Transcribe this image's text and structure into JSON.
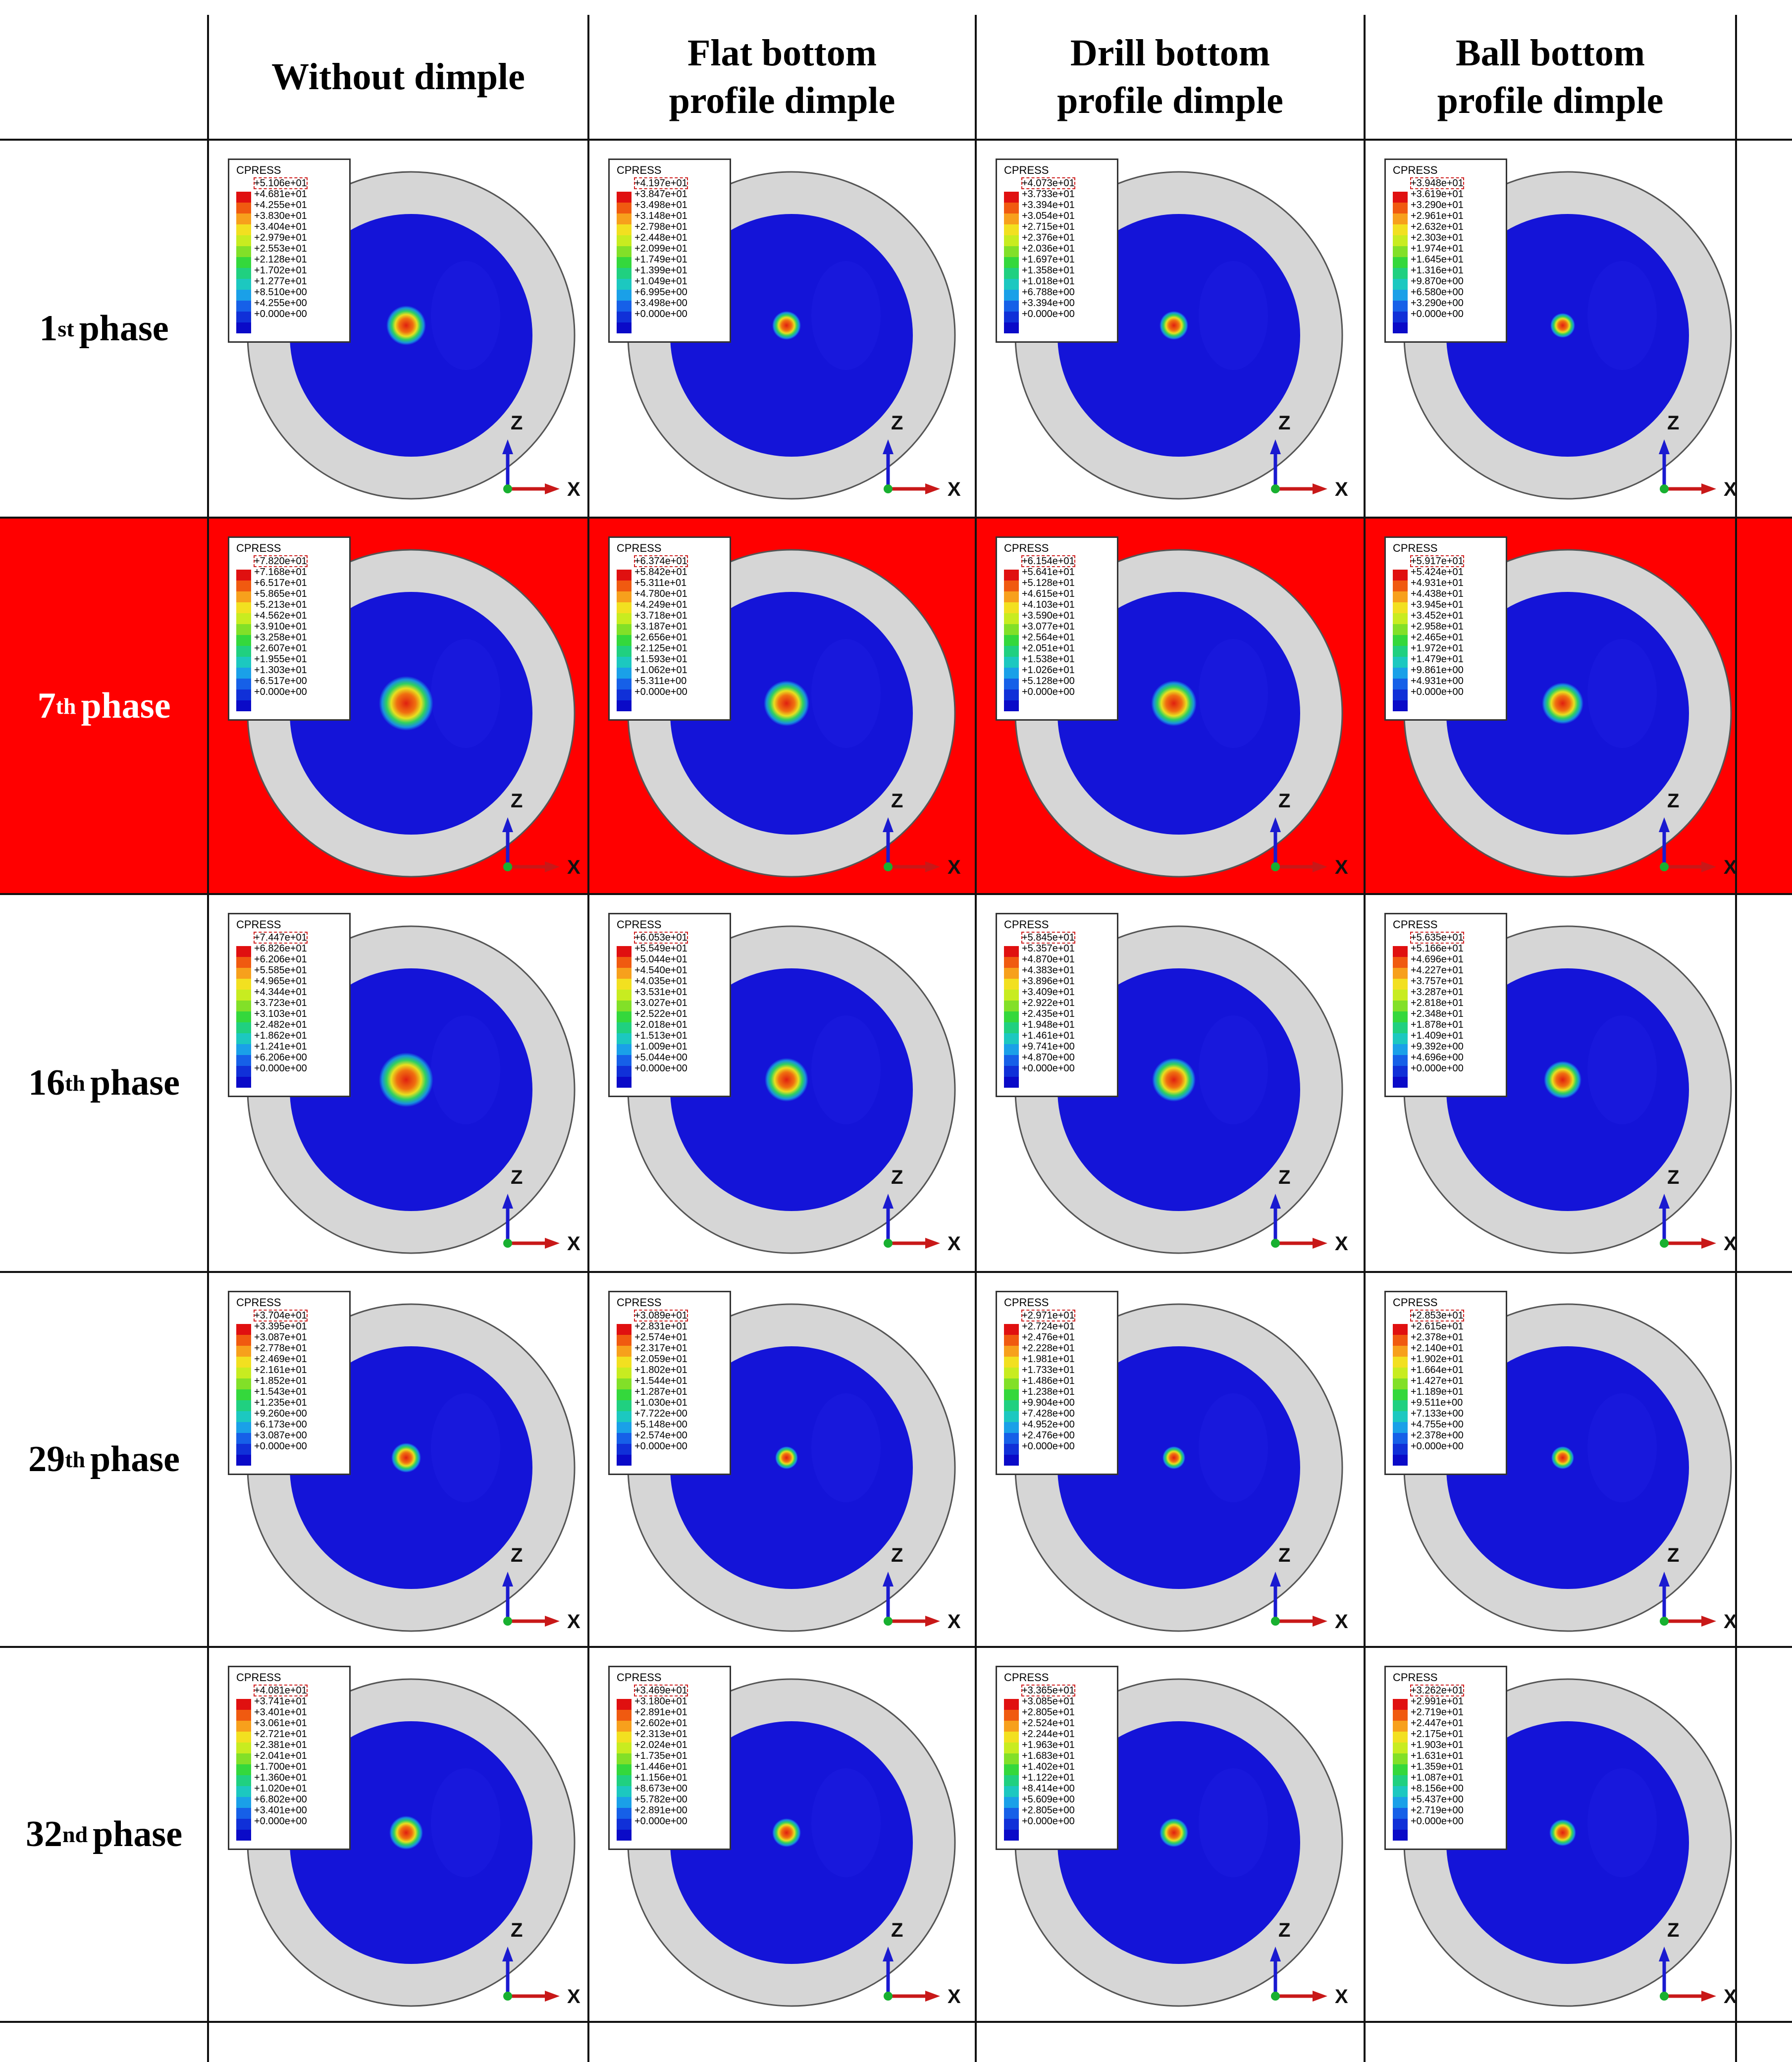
{
  "table": {
    "columns": [
      {
        "line1": "Without dimple",
        "line2": ""
      },
      {
        "line1": "Flat bottom",
        "line2": "profile dimple"
      },
      {
        "line1": "Drill bottom",
        "line2": "profile dimple"
      },
      {
        "line1": "Ball bottom",
        "line2": "profile dimple"
      }
    ],
    "rows": [
      {
        "num": "1",
        "sup": "st",
        "label": "phase",
        "highlight": false
      },
      {
        "num": "7",
        "sup": "th",
        "label": "phase",
        "highlight": true
      },
      {
        "num": "16",
        "sup": "th",
        "label": "phase",
        "highlight": false
      },
      {
        "num": "29",
        "sup": "th",
        "label": "phase",
        "highlight": false
      },
      {
        "num": "32",
        "sup": "nd",
        "label": "phase",
        "highlight": false
      }
    ],
    "legend_title": "CPRESS",
    "axis_labels": {
      "vertical": "Z",
      "horizontal": "X"
    },
    "colors": {
      "highlight_band": "#ff0000",
      "disk_blue": "#1414d8",
      "rim_gray": "#d6d6d6",
      "hotspot": "#e02010"
    },
    "colorbar": [
      "#e01010",
      "#f05a10",
      "#f7a01c",
      "#f2e020",
      "#c8ec20",
      "#82e028",
      "#34d83c",
      "#20d080",
      "#1cc8c0",
      "#1aa0e8",
      "#1660e8",
      "#1030d8",
      "#0a0ac8"
    ],
    "hotspot_scale": [
      [
        0.21,
        0.15,
        0.15,
        0.13
      ],
      [
        0.29,
        0.24,
        0.24,
        0.22
      ],
      [
        0.29,
        0.23,
        0.23,
        0.2
      ],
      [
        0.16,
        0.12,
        0.12,
        0.12
      ],
      [
        0.18,
        0.15,
        0.15,
        0.14
      ]
    ],
    "legends": [
      [
        [
          "+5.106e+01",
          "+4.681e+01",
          "+4.255e+01",
          "+3.830e+01",
          "+3.404e+01",
          "+2.979e+01",
          "+2.553e+01",
          "+2.128e+01",
          "+1.702e+01",
          "+1.277e+01",
          "+8.510e+00",
          "+4.255e+00",
          "+0.000e+00"
        ],
        [
          "+4.197e+01",
          "+3.847e+01",
          "+3.498e+01",
          "+3.148e+01",
          "+2.798e+01",
          "+2.448e+01",
          "+2.099e+01",
          "+1.749e+01",
          "+1.399e+01",
          "+1.049e+01",
          "+6.995e+00",
          "+3.498e+00",
          "+0.000e+00"
        ],
        [
          "+4.073e+01",
          "+3.733e+01",
          "+3.394e+01",
          "+3.054e+01",
          "+2.715e+01",
          "+2.376e+01",
          "+2.036e+01",
          "+1.697e+01",
          "+1.358e+01",
          "+1.018e+01",
          "+6.788e+00",
          "+3.394e+00",
          "+0.000e+00"
        ],
        [
          "+3.948e+01",
          "+3.619e+01",
          "+3.290e+01",
          "+2.961e+01",
          "+2.632e+01",
          "+2.303e+01",
          "+1.974e+01",
          "+1.645e+01",
          "+1.316e+01",
          "+9.870e+00",
          "+6.580e+00",
          "+3.290e+00",
          "+0.000e+00"
        ]
      ],
      [
        [
          "+7.820e+01",
          "+7.168e+01",
          "+6.517e+01",
          "+5.865e+01",
          "+5.213e+01",
          "+4.562e+01",
          "+3.910e+01",
          "+3.258e+01",
          "+2.607e+01",
          "+1.955e+01",
          "+1.303e+01",
          "+6.517e+00",
          "+0.000e+00"
        ],
        [
          "+6.374e+01",
          "+5.842e+01",
          "+5.311e+01",
          "+4.780e+01",
          "+4.249e+01",
          "+3.718e+01",
          "+3.187e+01",
          "+2.656e+01",
          "+2.125e+01",
          "+1.593e+01",
          "+1.062e+01",
          "+5.311e+00",
          "+0.000e+00"
        ],
        [
          "+6.154e+01",
          "+5.641e+01",
          "+5.128e+01",
          "+4.615e+01",
          "+4.103e+01",
          "+3.590e+01",
          "+3.077e+01",
          "+2.564e+01",
          "+2.051e+01",
          "+1.538e+01",
          "+1.026e+01",
          "+5.128e+00",
          "+0.000e+00"
        ],
        [
          "+5.917e+01",
          "+5.424e+01",
          "+4.931e+01",
          "+4.438e+01",
          "+3.945e+01",
          "+3.452e+01",
          "+2.958e+01",
          "+2.465e+01",
          "+1.972e+01",
          "+1.479e+01",
          "+9.861e+00",
          "+4.931e+00",
          "+0.000e+00"
        ]
      ],
      [
        [
          "+7.447e+01",
          "+6.826e+01",
          "+6.206e+01",
          "+5.585e+01",
          "+4.965e+01",
          "+4.344e+01",
          "+3.723e+01",
          "+3.103e+01",
          "+2.482e+01",
          "+1.862e+01",
          "+1.241e+01",
          "+6.206e+00",
          "+0.000e+00"
        ],
        [
          "+6.053e+01",
          "+5.549e+01",
          "+5.044e+01",
          "+4.540e+01",
          "+4.035e+01",
          "+3.531e+01",
          "+3.027e+01",
          "+2.522e+01",
          "+2.018e+01",
          "+1.513e+01",
          "+1.009e+01",
          "+5.044e+00",
          "+0.000e+00"
        ],
        [
          "+5.845e+01",
          "+5.357e+01",
          "+4.870e+01",
          "+4.383e+01",
          "+3.896e+01",
          "+3.409e+01",
          "+2.922e+01",
          "+2.435e+01",
          "+1.948e+01",
          "+1.461e+01",
          "+9.741e+00",
          "+4.870e+00",
          "+0.000e+00"
        ],
        [
          "+5.635e+01",
          "+5.166e+01",
          "+4.696e+01",
          "+4.227e+01",
          "+3.757e+01",
          "+3.287e+01",
          "+2.818e+01",
          "+2.348e+01",
          "+1.878e+01",
          "+1.409e+01",
          "+9.392e+00",
          "+4.696e+00",
          "+0.000e+00"
        ]
      ],
      [
        [
          "+3.704e+01",
          "+3.395e+01",
          "+3.087e+01",
          "+2.778e+01",
          "+2.469e+01",
          "+2.161e+01",
          "+1.852e+01",
          "+1.543e+01",
          "+1.235e+01",
          "+9.260e+00",
          "+6.173e+00",
          "+3.087e+00",
          "+0.000e+00"
        ],
        [
          "+3.089e+01",
          "+2.831e+01",
          "+2.574e+01",
          "+2.317e+01",
          "+2.059e+01",
          "+1.802e+01",
          "+1.544e+01",
          "+1.287e+01",
          "+1.030e+01",
          "+7.722e+00",
          "+5.148e+00",
          "+2.574e+00",
          "+0.000e+00"
        ],
        [
          "+2.971e+01",
          "+2.724e+01",
          "+2.476e+01",
          "+2.228e+01",
          "+1.981e+01",
          "+1.733e+01",
          "+1.486e+01",
          "+1.238e+01",
          "+9.904e+00",
          "+7.428e+00",
          "+4.952e+00",
          "+2.476e+00",
          "+0.000e+00"
        ],
        [
          "+2.853e+01",
          "+2.615e+01",
          "+2.378e+01",
          "+2.140e+01",
          "+1.902e+01",
          "+1.664e+01",
          "+1.427e+01",
          "+1.189e+01",
          "+9.511e+00",
          "+7.133e+00",
          "+4.755e+00",
          "+2.378e+00",
          "+0.000e+00"
        ]
      ],
      [
        [
          "+4.081e+01",
          "+3.741e+01",
          "+3.401e+01",
          "+3.061e+01",
          "+2.721e+01",
          "+2.381e+01",
          "+2.041e+01",
          "+1.700e+01",
          "+1.360e+01",
          "+1.020e+01",
          "+6.802e+00",
          "+3.401e+00",
          "+0.000e+00"
        ],
        [
          "+3.469e+01",
          "+3.180e+01",
          "+2.891e+01",
          "+2.602e+01",
          "+2.313e+01",
          "+2.024e+01",
          "+1.735e+01",
          "+1.446e+01",
          "+1.156e+01",
          "+8.673e+00",
          "+5.782e+00",
          "+2.891e+00",
          "+0.000e+00"
        ],
        [
          "+3.365e+01",
          "+3.085e+01",
          "+2.805e+01",
          "+2.524e+01",
          "+2.244e+01",
          "+1.963e+01",
          "+1.683e+01",
          "+1.402e+01",
          "+1.122e+01",
          "+8.414e+00",
          "+5.609e+00",
          "+2.805e+00",
          "+0.000e+00"
        ],
        [
          "+3.262e+01",
          "+2.991e+01",
          "+2.719e+01",
          "+2.447e+01",
          "+2.175e+01",
          "+1.903e+01",
          "+1.631e+01",
          "+1.359e+01",
          "+1.087e+01",
          "+8.156e+00",
          "+5.437e+00",
          "+2.719e+00",
          "+0.000e+00"
        ]
      ]
    ]
  }
}
